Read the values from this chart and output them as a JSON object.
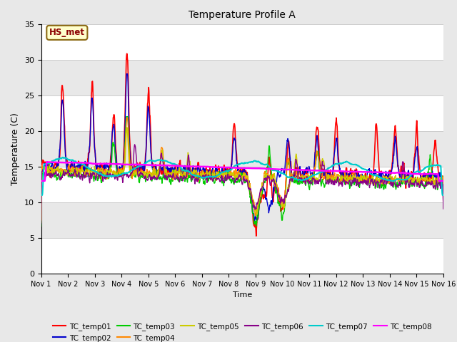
{
  "title": "Temperature Profile A",
  "xlabel": "Time",
  "ylabel": "Temperature (C)",
  "ylim": [
    0,
    35
  ],
  "annotation": "HS_met",
  "fig_bg": "#e8e8e8",
  "plot_bg": "#ffffff",
  "band_color_even": "#e8e8e8",
  "band_color_odd": "#ffffff",
  "series": [
    {
      "name": "TC_temp01",
      "color": "#ff0000",
      "lw": 1.2
    },
    {
      "name": "TC_temp02",
      "color": "#0000cc",
      "lw": 1.0
    },
    {
      "name": "TC_temp03",
      "color": "#00cc00",
      "lw": 1.0
    },
    {
      "name": "TC_temp04",
      "color": "#ff8800",
      "lw": 1.0
    },
    {
      "name": "TC_temp05",
      "color": "#cccc00",
      "lw": 1.0
    },
    {
      "name": "TC_temp06",
      "color": "#880088",
      "lw": 1.0
    },
    {
      "name": "TC_temp07",
      "color": "#00cccc",
      "lw": 1.5
    },
    {
      "name": "TC_temp08",
      "color": "#ff00ff",
      "lw": 1.8
    }
  ],
  "xtick_labels": [
    "Nov 1",
    "Nov 2",
    "Nov 3",
    "Nov 4",
    "Nov 5",
    "Nov 6",
    "Nov 7",
    "Nov 8",
    "Nov 9",
    "Nov 10",
    "Nov 11",
    "Nov 12",
    "Nov 13",
    "Nov 14",
    "Nov 15",
    "Nov 16"
  ]
}
